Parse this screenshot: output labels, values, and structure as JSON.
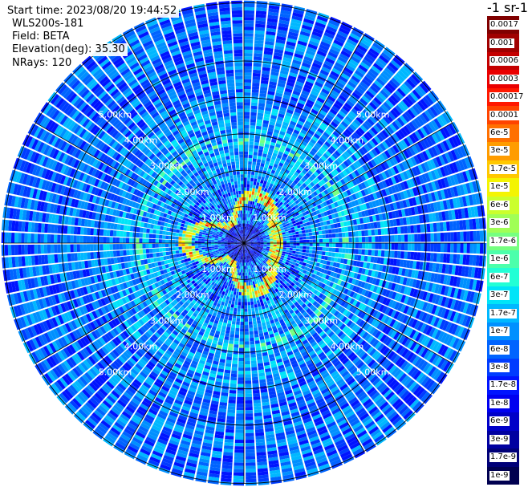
{
  "header": {
    "start_time": "Start time: 2023/08/20 19:44:52",
    "instrument": "WLS200s-181",
    "field": "Field: BETA",
    "elevation": "Elevation(deg): 35.30",
    "nrays": "NRays: 120"
  },
  "colorbar": {
    "unit_label": "-1 sr-1",
    "labels": [
      "0.0017",
      "0.001",
      "0.0006",
      "0.0003",
      "0.00017",
      "0.0001",
      "6e-5",
      "3e-5",
      "1.7e-5",
      "1e-5",
      "6e-6",
      "3e-6",
      "1.7e-6",
      "1e-6",
      "6e-7",
      "3e-7",
      "1.7e-7",
      "1e-7",
      "6e-8",
      "3e-8",
      "1.7e-8",
      "1e-8",
      "6e-9",
      "3e-9",
      "1.7e-9",
      "1e-9"
    ],
    "colors": [
      "#800000",
      "#a00000",
      "#c40000",
      "#ea0000",
      "#ff1800",
      "#ff4400",
      "#ff7000",
      "#ff9c00",
      "#ffc800",
      "#f4f402",
      "#cbff2c",
      "#a0ff56",
      "#76ff80",
      "#4cffab",
      "#22ffd5",
      "#00e4f8",
      "#00b8ff",
      "#0090ff",
      "#0064ff",
      "#003cff",
      "#0014ff",
      "#0000f0",
      "#0000c8",
      "#0000a0",
      "#000078",
      "#000050"
    ]
  },
  "chart_data": {
    "type": "heatmap",
    "title": "",
    "field": "BETA",
    "n_rays": 120,
    "elevation_deg": 35.3,
    "range_rings_km": [
      1.0,
      2.0,
      3.0,
      4.0,
      5.0
    ],
    "range_labels": [
      "1.00km",
      "2.00km",
      "3.00km",
      "4.00km",
      "5.00km"
    ],
    "max_range_km": 6.6,
    "spokes_deg": [
      0,
      30,
      60,
      90,
      120,
      150,
      180,
      210,
      240,
      270,
      300,
      330
    ],
    "region_levels": {
      "near_range_0_to_0.9km": "1e-8",
      "aerosol_ring_0.5_to_1.7km": "1.7e-5",
      "mid_range_1.5_to_4km": "1e-7",
      "far_range_4_to_6.6km": "6e-8"
    }
  }
}
